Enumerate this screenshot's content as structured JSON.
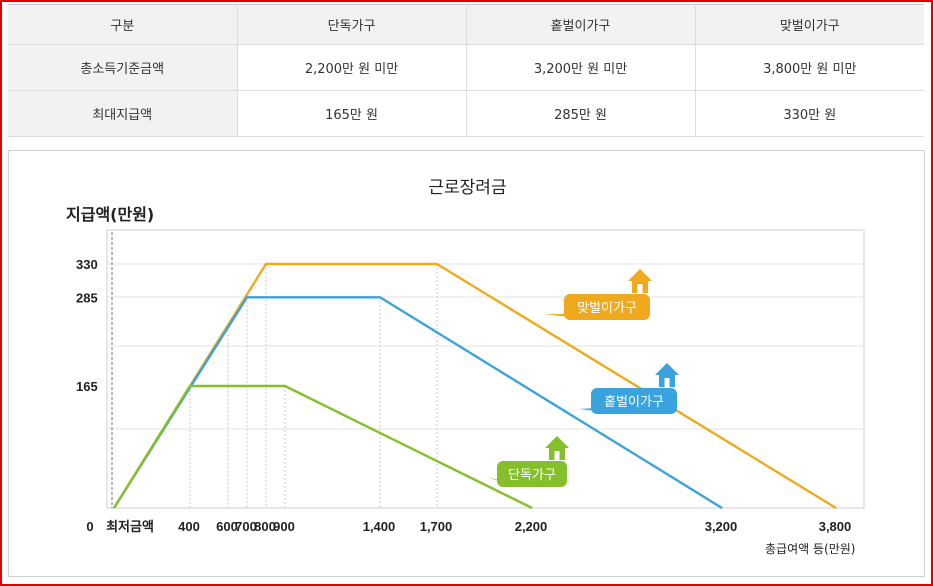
{
  "table": {
    "headers": [
      "구분",
      "단독가구",
      "홑벌이가구",
      "맞벌이가구"
    ],
    "rows": [
      {
        "label": "총소득기준금액",
        "cells": [
          "2,200만 원 미만",
          "3,200만 원 미만",
          "3,800만 원 미만"
        ]
      },
      {
        "label": "최대지급액",
        "cells": [
          "165만 원",
          "285만 원",
          "330만 원"
        ]
      }
    ]
  },
  "chart_data": {
    "type": "line",
    "title": "근로장려금",
    "ylabel": "지급액(만원)",
    "xlabel": "총급여액 등(만원)",
    "x_min_label": "최저금액",
    "x_zero_label": "0",
    "xticks": [
      400,
      600,
      700,
      800,
      900,
      1400,
      1700,
      2200,
      3200,
      3800
    ],
    "xtick_labels": [
      "400",
      "600",
      "700",
      "800",
      "900",
      "1,400",
      "1,700",
      "2,200",
      "3,200",
      "3,800"
    ],
    "yticks": [
      165,
      285,
      330
    ],
    "yticklabels": [
      "165",
      "285",
      "330"
    ],
    "ylim": [
      0,
      330
    ],
    "xlim": [
      0,
      3800
    ],
    "series": [
      {
        "name": "맞벌이가구",
        "color": "#f0a81c",
        "x": [
          0,
          800,
          1700,
          3800
        ],
        "y": [
          0,
          330,
          330,
          0
        ],
        "badge_color": "#f0a81c"
      },
      {
        "name": "홑벌이가구",
        "color": "#3aa2dc",
        "x": [
          0,
          700,
          1400,
          3200
        ],
        "y": [
          0,
          285,
          285,
          0
        ],
        "badge_color": "#3aa2dc"
      },
      {
        "name": "단독가구",
        "color": "#86bf2c",
        "x": [
          0,
          400,
          900,
          2200
        ],
        "y": [
          0,
          165,
          165,
          0
        ],
        "badge_color": "#86bf2c"
      }
    ]
  }
}
